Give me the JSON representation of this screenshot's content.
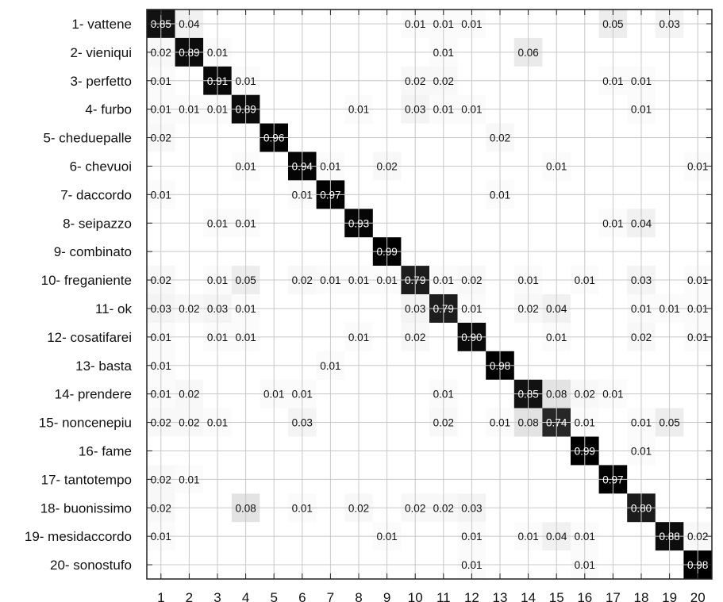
{
  "chart_data": {
    "type": "heatmap",
    "title": "",
    "xlabel": "",
    "ylabel": "",
    "row_labels": [
      "1- vattene",
      "2- vieniqui",
      "3- perfetto",
      "4- furbo",
      "5- cheduepalle",
      "6- chevuoi",
      "7- daccordo",
      "8- seipazzo",
      "9- combinato",
      "10- freganiente",
      "11- ok",
      "12- cosatifarei",
      "13- basta",
      "14- prendere",
      "15- noncenepiu",
      "16- fame",
      "17- tantotempo",
      "18- buonissimo",
      "19- mesidaccordo",
      "20- sonostufo"
    ],
    "col_labels": [
      "1",
      "2",
      "3",
      "4",
      "5",
      "6",
      "7",
      "8",
      "9",
      "10",
      "11",
      "12",
      "13",
      "14",
      "15",
      "16",
      "17",
      "18",
      "19",
      "20"
    ],
    "grid": true,
    "colormap": "white-to-black",
    "cells": [
      {
        "r": 1,
        "c": 1,
        "v": 0.85
      },
      {
        "r": 1,
        "c": 2,
        "v": 0.04
      },
      {
        "r": 1,
        "c": 10,
        "v": 0.01
      },
      {
        "r": 1,
        "c": 11,
        "v": 0.01
      },
      {
        "r": 1,
        "c": 12,
        "v": 0.01
      },
      {
        "r": 1,
        "c": 17,
        "v": 0.05
      },
      {
        "r": 1,
        "c": 19,
        "v": 0.03
      },
      {
        "r": 2,
        "c": 1,
        "v": 0.02
      },
      {
        "r": 2,
        "c": 2,
        "v": 0.89
      },
      {
        "r": 2,
        "c": 3,
        "v": 0.01
      },
      {
        "r": 2,
        "c": 11,
        "v": 0.01
      },
      {
        "r": 2,
        "c": 14,
        "v": 0.06
      },
      {
        "r": 3,
        "c": 1,
        "v": 0.01
      },
      {
        "r": 3,
        "c": 3,
        "v": 0.91
      },
      {
        "r": 3,
        "c": 4,
        "v": 0.01
      },
      {
        "r": 3,
        "c": 10,
        "v": 0.02
      },
      {
        "r": 3,
        "c": 11,
        "v": 0.02
      },
      {
        "r": 3,
        "c": 17,
        "v": 0.01
      },
      {
        "r": 3,
        "c": 18,
        "v": 0.01
      },
      {
        "r": 4,
        "c": 1,
        "v": 0.01
      },
      {
        "r": 4,
        "c": 2,
        "v": 0.01
      },
      {
        "r": 4,
        "c": 3,
        "v": 0.01
      },
      {
        "r": 4,
        "c": 4,
        "v": 0.89
      },
      {
        "r": 4,
        "c": 8,
        "v": 0.01
      },
      {
        "r": 4,
        "c": 10,
        "v": 0.03
      },
      {
        "r": 4,
        "c": 11,
        "v": 0.01
      },
      {
        "r": 4,
        "c": 12,
        "v": 0.01
      },
      {
        "r": 4,
        "c": 18,
        "v": 0.01
      },
      {
        "r": 5,
        "c": 1,
        "v": 0.02
      },
      {
        "r": 5,
        "c": 5,
        "v": 0.96
      },
      {
        "r": 5,
        "c": 13,
        "v": 0.02
      },
      {
        "r": 6,
        "c": 4,
        "v": 0.01
      },
      {
        "r": 6,
        "c": 6,
        "v": 0.94
      },
      {
        "r": 6,
        "c": 7,
        "v": 0.01
      },
      {
        "r": 6,
        "c": 9,
        "v": 0.02
      },
      {
        "r": 6,
        "c": 15,
        "v": 0.01
      },
      {
        "r": 6,
        "c": 20,
        "v": 0.01
      },
      {
        "r": 7,
        "c": 1,
        "v": 0.01
      },
      {
        "r": 7,
        "c": 6,
        "v": 0.01
      },
      {
        "r": 7,
        "c": 7,
        "v": 0.97
      },
      {
        "r": 7,
        "c": 13,
        "v": 0.01
      },
      {
        "r": 8,
        "c": 3,
        "v": 0.01
      },
      {
        "r": 8,
        "c": 4,
        "v": 0.01
      },
      {
        "r": 8,
        "c": 8,
        "v": 0.93
      },
      {
        "r": 8,
        "c": 17,
        "v": 0.01
      },
      {
        "r": 8,
        "c": 18,
        "v": 0.04
      },
      {
        "r": 9,
        "c": 9,
        "v": 0.99
      },
      {
        "r": 10,
        "c": 1,
        "v": 0.02
      },
      {
        "r": 10,
        "c": 3,
        "v": 0.01
      },
      {
        "r": 10,
        "c": 4,
        "v": 0.05
      },
      {
        "r": 10,
        "c": 6,
        "v": 0.02
      },
      {
        "r": 10,
        "c": 7,
        "v": 0.01
      },
      {
        "r": 10,
        "c": 8,
        "v": 0.01
      },
      {
        "r": 10,
        "c": 9,
        "v": 0.01
      },
      {
        "r": 10,
        "c": 10,
        "v": 0.79
      },
      {
        "r": 10,
        "c": 11,
        "v": 0.01
      },
      {
        "r": 10,
        "c": 12,
        "v": 0.02
      },
      {
        "r": 10,
        "c": 14,
        "v": 0.01
      },
      {
        "r": 10,
        "c": 16,
        "v": 0.01
      },
      {
        "r": 10,
        "c": 18,
        "v": 0.03
      },
      {
        "r": 10,
        "c": 20,
        "v": 0.01
      },
      {
        "r": 11,
        "c": 1,
        "v": 0.03
      },
      {
        "r": 11,
        "c": 2,
        "v": 0.02
      },
      {
        "r": 11,
        "c": 3,
        "v": 0.03
      },
      {
        "r": 11,
        "c": 4,
        "v": 0.01
      },
      {
        "r": 11,
        "c": 10,
        "v": 0.03
      },
      {
        "r": 11,
        "c": 11,
        "v": 0.79
      },
      {
        "r": 11,
        "c": 12,
        "v": 0.01
      },
      {
        "r": 11,
        "c": 14,
        "v": 0.02
      },
      {
        "r": 11,
        "c": 15,
        "v": 0.04
      },
      {
        "r": 11,
        "c": 18,
        "v": 0.01
      },
      {
        "r": 11,
        "c": 19,
        "v": 0.01
      },
      {
        "r": 11,
        "c": 20,
        "v": 0.01
      },
      {
        "r": 12,
        "c": 1,
        "v": 0.01
      },
      {
        "r": 12,
        "c": 3,
        "v": 0.01
      },
      {
        "r": 12,
        "c": 4,
        "v": 0.01
      },
      {
        "r": 12,
        "c": 8,
        "v": 0.01
      },
      {
        "r": 12,
        "c": 10,
        "v": 0.02
      },
      {
        "r": 12,
        "c": 12,
        "v": 0.9
      },
      {
        "r": 12,
        "c": 15,
        "v": 0.01
      },
      {
        "r": 12,
        "c": 18,
        "v": 0.02
      },
      {
        "r": 12,
        "c": 20,
        "v": 0.01
      },
      {
        "r": 13,
        "c": 1,
        "v": 0.01
      },
      {
        "r": 13,
        "c": 7,
        "v": 0.01
      },
      {
        "r": 13,
        "c": 13,
        "v": 0.98
      },
      {
        "r": 14,
        "c": 1,
        "v": 0.01
      },
      {
        "r": 14,
        "c": 2,
        "v": 0.02
      },
      {
        "r": 14,
        "c": 5,
        "v": 0.01
      },
      {
        "r": 14,
        "c": 6,
        "v": 0.01
      },
      {
        "r": 14,
        "c": 11,
        "v": 0.01
      },
      {
        "r": 14,
        "c": 14,
        "v": 0.85
      },
      {
        "r": 14,
        "c": 15,
        "v": 0.08
      },
      {
        "r": 14,
        "c": 16,
        "v": 0.02
      },
      {
        "r": 14,
        "c": 17,
        "v": 0.01
      },
      {
        "r": 15,
        "c": 1,
        "v": 0.02
      },
      {
        "r": 15,
        "c": 2,
        "v": 0.02
      },
      {
        "r": 15,
        "c": 3,
        "v": 0.01
      },
      {
        "r": 15,
        "c": 6,
        "v": 0.03
      },
      {
        "r": 15,
        "c": 11,
        "v": 0.02
      },
      {
        "r": 15,
        "c": 13,
        "v": 0.01
      },
      {
        "r": 15,
        "c": 14,
        "v": 0.08
      },
      {
        "r": 15,
        "c": 15,
        "v": 0.74
      },
      {
        "r": 15,
        "c": 16,
        "v": 0.01
      },
      {
        "r": 15,
        "c": 18,
        "v": 0.01
      },
      {
        "r": 15,
        "c": 19,
        "v": 0.05
      },
      {
        "r": 16,
        "c": 16,
        "v": 0.99
      },
      {
        "r": 16,
        "c": 18,
        "v": 0.01
      },
      {
        "r": 17,
        "c": 1,
        "v": 0.02
      },
      {
        "r": 17,
        "c": 2,
        "v": 0.01
      },
      {
        "r": 17,
        "c": 17,
        "v": 0.97
      },
      {
        "r": 18,
        "c": 1,
        "v": 0.02
      },
      {
        "r": 18,
        "c": 4,
        "v": 0.08
      },
      {
        "r": 18,
        "c": 6,
        "v": 0.01
      },
      {
        "r": 18,
        "c": 8,
        "v": 0.02
      },
      {
        "r": 18,
        "c": 10,
        "v": 0.02
      },
      {
        "r": 18,
        "c": 11,
        "v": 0.02
      },
      {
        "r": 18,
        "c": 12,
        "v": 0.03
      },
      {
        "r": 18,
        "c": 18,
        "v": 0.8
      },
      {
        "r": 19,
        "c": 1,
        "v": 0.01
      },
      {
        "r": 19,
        "c": 9,
        "v": 0.01
      },
      {
        "r": 19,
        "c": 12,
        "v": 0.01
      },
      {
        "r": 19,
        "c": 14,
        "v": 0.01
      },
      {
        "r": 19,
        "c": 15,
        "v": 0.04
      },
      {
        "r": 19,
        "c": 16,
        "v": 0.01
      },
      {
        "r": 19,
        "c": 19,
        "v": 0.88
      },
      {
        "r": 19,
        "c": 20,
        "v": 0.02
      },
      {
        "r": 20,
        "c": 12,
        "v": 0.01
      },
      {
        "r": 20,
        "c": 16,
        "v": 0.01
      },
      {
        "r": 20,
        "c": 20,
        "v": 0.98
      }
    ]
  }
}
